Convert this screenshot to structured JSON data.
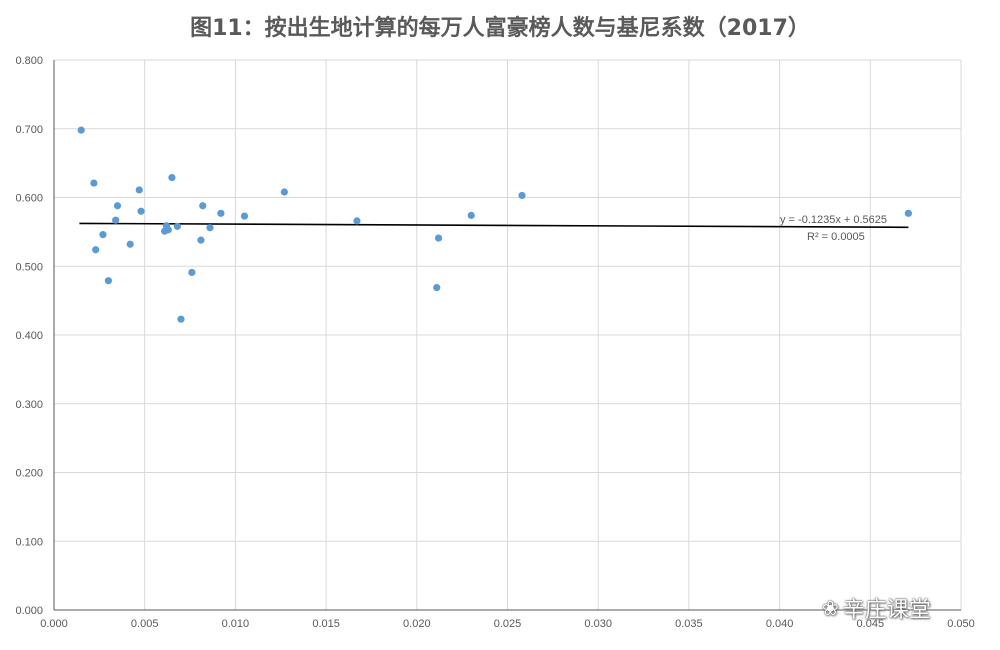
{
  "chart_data": {
    "type": "scatter",
    "title": "图11：按出生地计算的每万人富豪榜人数与基尼系数（2017）",
    "xlim": [
      0,
      0.05
    ],
    "ylim": [
      0,
      0.8
    ],
    "xticks": [
      "0.000",
      "0.005",
      "0.010",
      "0.015",
      "0.020",
      "0.025",
      "0.030",
      "0.035",
      "0.040",
      "0.045",
      "0.050"
    ],
    "yticks": [
      "0.000",
      "0.100",
      "0.200",
      "0.300",
      "0.400",
      "0.500",
      "0.600",
      "0.700",
      "0.800"
    ],
    "grid": true,
    "series": [
      {
        "color": "#5b9bd5",
        "points": [
          [
            0.0015,
            0.698
          ],
          [
            0.0022,
            0.621
          ],
          [
            0.0023,
            0.524
          ],
          [
            0.0027,
            0.546
          ],
          [
            0.003,
            0.479
          ],
          [
            0.0034,
            0.567
          ],
          [
            0.0035,
            0.588
          ],
          [
            0.0042,
            0.532
          ],
          [
            0.0047,
            0.611
          ],
          [
            0.0048,
            0.58
          ],
          [
            0.0061,
            0.551
          ],
          [
            0.0062,
            0.559
          ],
          [
            0.0063,
            0.553
          ],
          [
            0.0065,
            0.629
          ],
          [
            0.0068,
            0.558
          ],
          [
            0.007,
            0.423
          ],
          [
            0.0076,
            0.491
          ],
          [
            0.0081,
            0.538
          ],
          [
            0.0082,
            0.588
          ],
          [
            0.0086,
            0.556
          ],
          [
            0.0092,
            0.577
          ],
          [
            0.0105,
            0.573
          ],
          [
            0.0127,
            0.608
          ],
          [
            0.0167,
            0.566
          ],
          [
            0.0211,
            0.469
          ],
          [
            0.0212,
            0.541
          ],
          [
            0.023,
            0.574
          ],
          [
            0.0258,
            0.603
          ],
          [
            0.0471,
            0.577
          ]
        ]
      }
    ],
    "trendline": {
      "slope": -0.1235,
      "intercept": 0.5625,
      "x_range": [
        0.0014,
        0.0471
      ],
      "equation": "y = -0.1235x + 0.5625",
      "r2": "R² = 0.0005",
      "color": "#000000"
    }
  },
  "watermark": {
    "icon": "wechat-icon",
    "text": "辛庄课堂"
  }
}
